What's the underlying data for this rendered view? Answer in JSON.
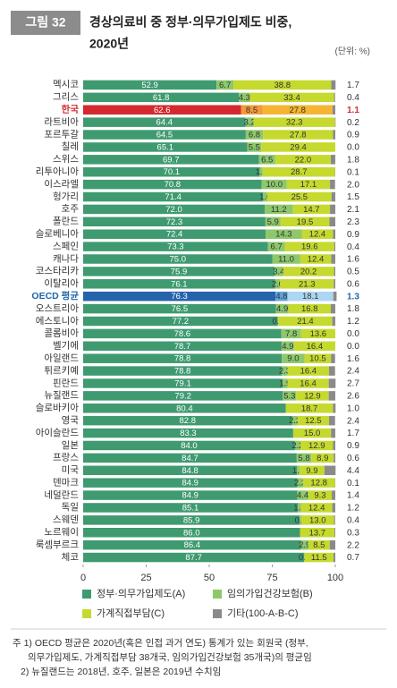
{
  "chart_data": {
    "type": "stacked_bar",
    "badge": "그림 32",
    "title": [
      "경상의료비 중 정부·의무가입제도 비중,",
      "2020년"
    ],
    "unit": "(단위: %)",
    "categories": [
      "멕시코",
      "그리스",
      "한국",
      "라트비아",
      "포르투갈",
      "칠레",
      "스위스",
      "리투아니아",
      "이스라엘",
      "헝가리",
      "호주",
      "폴란드",
      "슬로베니아",
      "스페인",
      "캐나다",
      "코스타리카",
      "이탈리아",
      "OECD 평균",
      "오스트리아",
      "에스토니아",
      "콜롬비아",
      "벨기에",
      "아일랜드",
      "튀르키예",
      "핀란드",
      "뉴질랜드",
      "슬로바키아",
      "영국",
      "아이슬란드",
      "일본",
      "프랑스",
      "미국",
      "덴마크",
      "네덜란드",
      "독일",
      "스웨덴",
      "노르웨이",
      "룩셈부르크",
      "체코"
    ],
    "series": [
      {
        "name": "정부·의무가입제도(A)",
        "color": "#3f9a70",
        "values": [
          52.9,
          61.8,
          62.6,
          64.4,
          64.5,
          65.1,
          69.7,
          70.1,
          70.8,
          71.4,
          72.0,
          72.3,
          72.4,
          73.3,
          75.0,
          75.9,
          76.1,
          76.3,
          76.5,
          77.2,
          78.6,
          78.7,
          78.8,
          78.8,
          79.1,
          79.2,
          80.4,
          82.8,
          83.3,
          84.0,
          84.7,
          84.8,
          84.9,
          84.9,
          85.1,
          85.9,
          86.0,
          86.4,
          87.7
        ],
        "value_labels": [
          "52.9",
          "61.8",
          "62.6",
          "64.4",
          "64.5",
          "65.1",
          "69.7",
          "70.1",
          "70.8",
          "71.4",
          "72.0",
          "72.3",
          "72.4",
          "73.3",
          "75.0",
          "75.9",
          "76.1",
          "76.3",
          "76.5",
          "77.2",
          "78.6",
          "78.7",
          "78.8",
          "78.8",
          "79.1",
          "79.2",
          "80.4",
          "82.8",
          "83.3",
          "84.0",
          "84.7",
          "84.8",
          "84.9",
          "84.9",
          "85.1",
          "85.9",
          "86.0",
          "86.4",
          "87.7"
        ]
      },
      {
        "name": "임의가입건강보험(B)",
        "color": "#8dc86b",
        "values": [
          6.7,
          4.3,
          8.5,
          3.2,
          6.8,
          5.5,
          6.5,
          1.1,
          10.0,
          1.6,
          11.2,
          5.9,
          14.3,
          6.7,
          11.0,
          3.4,
          2.0,
          4.8,
          4.9,
          0.2,
          7.8,
          4.9,
          9.0,
          2.3,
          1.9,
          5.3,
          null,
          2.2,
          null,
          2.2,
          5.8,
          1.0,
          2.2,
          4.4,
          1.3,
          0.6,
          null,
          2.9,
          0.1
        ],
        "value_labels": [
          "6.7",
          "4.3",
          "8.5",
          "3.2",
          "6.8",
          "5.5",
          "6.5",
          "1.1",
          "10.0",
          "1.6",
          "11.2",
          "5.9",
          "14.3",
          "6.7",
          "11.0",
          "3.4",
          "2.0",
          "4.8",
          "4.9",
          "0.2",
          "7.8",
          "4.9",
          "9.0",
          "2.3",
          "1.9",
          "5.3",
          null,
          "2.2",
          null,
          "2.2",
          "5.8",
          "1.0",
          "2.2",
          "4.4",
          "1.3",
          "0.6",
          null,
          "2.9",
          "0.1"
        ]
      },
      {
        "name": "가계직접부담(C)",
        "color": "#c6d92e",
        "values": [
          38.8,
          33.4,
          27.8,
          32.3,
          27.8,
          29.4,
          22.0,
          28.7,
          17.1,
          25.5,
          14.7,
          19.5,
          12.4,
          19.6,
          12.4,
          20.2,
          21.3,
          18.1,
          16.8,
          21.4,
          13.6,
          16.4,
          10.5,
          16.4,
          16.4,
          12.9,
          18.7,
          12.5,
          15.0,
          12.9,
          8.9,
          9.9,
          12.8,
          9.3,
          12.4,
          13.0,
          13.7,
          8.5,
          11.5
        ],
        "value_labels": [
          "38.8",
          "33.4",
          "27.8",
          "32.3",
          "27.8",
          "29.4",
          "22.0",
          "28.7",
          "17.1",
          "25.5",
          "14.7",
          "19.5",
          "12.4",
          "19.6",
          "12.4",
          "20.2",
          "21.3",
          "18.1",
          "16.8",
          "21.4",
          "13.6",
          "16.4",
          "10.5",
          "16.4",
          "16.4",
          "12.9",
          "18.7",
          "12.5",
          "15.0",
          "12.9",
          "8.9",
          "9.9",
          "12.8",
          "9.3",
          "12.4",
          "13.0",
          "13.7",
          "8.5",
          "11.5"
        ]
      },
      {
        "name": "기타(100-A-B-C)",
        "color": "#8a8a8a",
        "values": [
          1.7,
          0.4,
          1.1,
          0.2,
          0.9,
          0.0,
          1.8,
          0.1,
          2.0,
          1.5,
          2.1,
          2.3,
          0.9,
          0.4,
          1.6,
          0.5,
          0.6,
          1.3,
          1.8,
          1.2,
          0.0,
          0.0,
          1.6,
          2.4,
          2.7,
          2.6,
          1.0,
          2.4,
          1.7,
          0.9,
          0.6,
          4.4,
          0.1,
          1.4,
          1.2,
          0.4,
          0.3,
          2.2,
          0.7
        ],
        "value_labels": [
          "1.7",
          "0.4",
          "1.1",
          "0.2",
          "0.9",
          "0.0",
          "1.8",
          "0.1",
          "2.0",
          "1.5",
          "2.1",
          "2.3",
          "0.9",
          "0.4",
          "1.6",
          "0.5",
          "0.6",
          "1.3",
          "1.8",
          "1.2",
          "0.0",
          "0.0",
          "1.6",
          "2.4",
          "2.7",
          "2.6",
          "1.0",
          "2.4",
          "1.7",
          "0.9",
          "0.6",
          "4.4",
          "0.1",
          "1.4",
          "1.2",
          "0.4",
          "0.3",
          "2.2",
          "0.7"
        ]
      }
    ],
    "highlights": [
      {
        "category": "한국",
        "label_color": "#d42a2f",
        "colors": [
          "#d42a2f",
          "#f29a3b",
          "#f6b531",
          "#8a8a8a"
        ]
      },
      {
        "category": "OECD 평균",
        "label_color": "#1e63ad",
        "colors": [
          "#2563ab",
          "#5ea3d9",
          "#acd6f1",
          "#8a8a8a"
        ]
      }
    ],
    "xlim": [
      0,
      100
    ],
    "xticks": [
      0,
      25,
      50,
      75,
      100
    ],
    "grid": false,
    "notes": [
      "주 1) OECD 평균은 2020년(혹은 인접 과거 연도) 통계가 있는 회원국 (정부,",
      "의무가입제도, 가계직접부담 38개국, 임의가입건강보험 35개국)의 평균임",
      "2) 뉴질랜드는 2018년, 호주, 일본은 2019년 수치임"
    ]
  }
}
